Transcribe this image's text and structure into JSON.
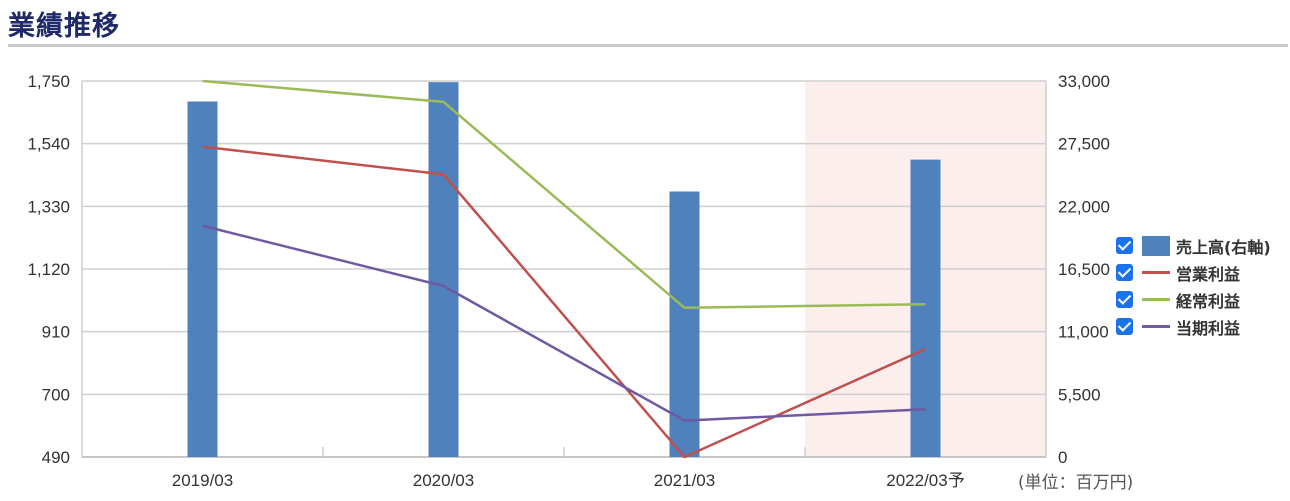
{
  "page": {
    "title": "業績推移",
    "unit_note": "(単位：百万円)"
  },
  "chart_data": {
    "type": "bar",
    "categories": [
      "2019/03",
      "2020/03",
      "2021/03",
      "2022/03予"
    ],
    "forecast_category": "2022/03予",
    "forecast_band_color": "#fdeeee",
    "y_left": {
      "ticks": [
        "1,750",
        "1,540",
        "1,330",
        "1,120",
        "910",
        "700",
        "490"
      ],
      "range": [
        490,
        1750
      ]
    },
    "y_right": {
      "ticks": [
        "33,000",
        "27,500",
        "22,000",
        "16,500",
        "11,000",
        "5,500",
        "0"
      ],
      "range": [
        0,
        33000
      ]
    },
    "grid": true,
    "legend_position": "right",
    "series": [
      {
        "name": "売上高(右軸)",
        "type": "bar",
        "axis": "right",
        "color": "#4f81bd",
        "values": [
          31200,
          32900,
          23300,
          26100
        ]
      },
      {
        "name": "営業利益",
        "type": "line",
        "axis": "left",
        "color": "#c0504d",
        "values": [
          1530,
          1437,
          490,
          852
        ]
      },
      {
        "name": "経常利益",
        "type": "line",
        "axis": "left",
        "color": "#9bbb59",
        "values": [
          1750,
          1680,
          990,
          1002
        ]
      },
      {
        "name": "当期利益",
        "type": "line",
        "axis": "left",
        "color": "#7059a0",
        "values": [
          1265,
          1063,
          612,
          650
        ]
      }
    ]
  }
}
